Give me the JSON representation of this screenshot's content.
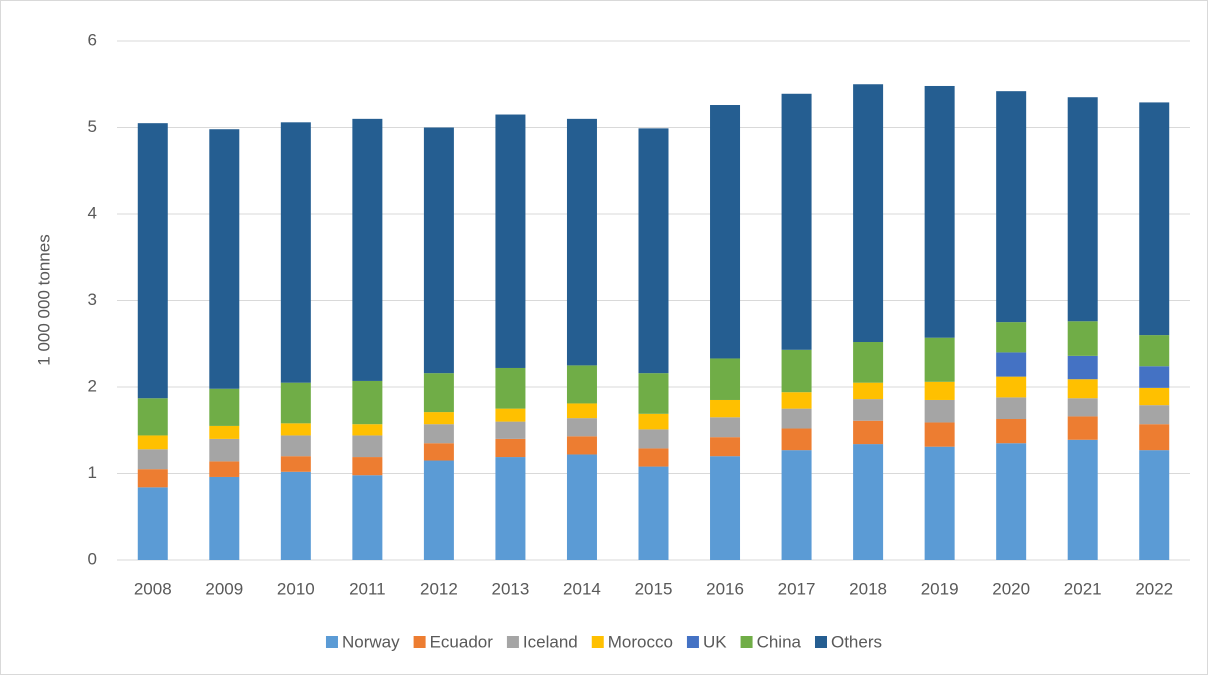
{
  "chart_data": {
    "type": "bar",
    "stacked": true,
    "y_axis_label": "1 000 000 tonnes",
    "categories": [
      "2008",
      "2009",
      "2010",
      "2011",
      "2012",
      "2013",
      "2014",
      "2015",
      "2016",
      "2017",
      "2018",
      "2019",
      "2020",
      "2021",
      "2022"
    ],
    "series": [
      {
        "name": "Norway",
        "color": "#5b9bd5",
        "values": [
          0.84,
          0.96,
          1.02,
          0.98,
          1.15,
          1.19,
          1.22,
          1.08,
          1.2,
          1.27,
          1.34,
          1.31,
          1.35,
          1.39,
          1.27
        ]
      },
      {
        "name": "Ecuador",
        "color": "#ed7d31",
        "values": [
          0.21,
          0.18,
          0.18,
          0.21,
          0.2,
          0.21,
          0.21,
          0.21,
          0.22,
          0.25,
          0.27,
          0.28,
          0.28,
          0.27,
          0.3
        ]
      },
      {
        "name": "Iceland",
        "color": "#a5a5a5",
        "values": [
          0.23,
          0.26,
          0.24,
          0.25,
          0.22,
          0.2,
          0.21,
          0.22,
          0.23,
          0.23,
          0.25,
          0.26,
          0.25,
          0.21,
          0.22
        ]
      },
      {
        "name": "Morocco",
        "color": "#ffc000",
        "values": [
          0.16,
          0.15,
          0.14,
          0.13,
          0.14,
          0.15,
          0.17,
          0.18,
          0.2,
          0.19,
          0.19,
          0.21,
          0.24,
          0.22,
          0.2
        ]
      },
      {
        "name": "UK",
        "color": "#4472c4",
        "values": [
          0,
          0,
          0,
          0,
          0,
          0,
          0,
          0,
          0,
          0,
          0,
          0,
          0.28,
          0.27,
          0.25
        ]
      },
      {
        "name": "China",
        "color": "#70ad47",
        "values": [
          0.43,
          0.43,
          0.47,
          0.5,
          0.45,
          0.47,
          0.44,
          0.47,
          0.48,
          0.49,
          0.47,
          0.51,
          0.35,
          0.4,
          0.36
        ]
      },
      {
        "name": "Others",
        "color": "#255e91",
        "values": [
          3.18,
          3.0,
          3.01,
          3.03,
          2.84,
          2.93,
          2.85,
          2.83,
          2.93,
          2.96,
          2.98,
          2.91,
          2.67,
          2.59,
          2.69
        ]
      }
    ],
    "ylim": [
      0,
      6
    ],
    "yticks": [
      0,
      1,
      2,
      3,
      4,
      5,
      6
    ],
    "grid": true,
    "legend": "bottom"
  }
}
